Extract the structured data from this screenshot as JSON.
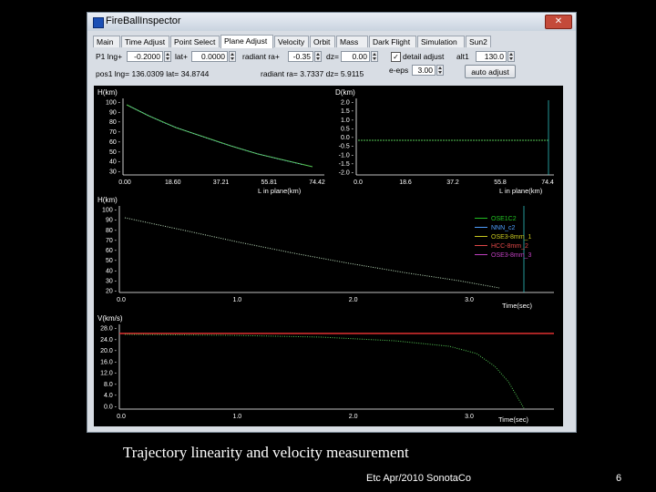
{
  "window": {
    "title": "FireBallInspector"
  },
  "tabs": [
    "Main",
    "Time Adjust",
    "Point Select",
    "Plane Adjust",
    "Velocity",
    "Orbit",
    "Mass",
    "Dark Flight",
    "Simulation",
    "Sun2"
  ],
  "active_tab_index": 3,
  "controls": {
    "p1_lng_label": "P1 lng+",
    "p1_lng_value": "-0.2000",
    "lat_label": "lat+",
    "lat_value": "0.0000",
    "radiant_ra_label": "radiant ra+",
    "radiant_ra_value": "-0.35",
    "dz_label": "dz=",
    "dz_value": "0.00",
    "detail_adjust_label": "detail adjust",
    "detail_adjust_checked": true,
    "alt1_label": "alt1",
    "alt1_value": "130.0",
    "eps_label": "e-eps",
    "eps_value": "3.00",
    "auto_adjust_label": "auto adjust",
    "status_text": "pos1 lng= 136.0309  lat= 34.8744",
    "status_text2": "radiant ra= 3.7337  dz= 5.9115"
  },
  "plot1": {
    "ylabel": "H(km)",
    "xlabel": "L in plane(km)",
    "yticks": [
      "100",
      "90",
      "80",
      "70",
      "60",
      "50",
      "40",
      "30"
    ],
    "xticks": [
      "0.00",
      "18.60",
      "37.21",
      "55.81",
      "74.42"
    ]
  },
  "plot2": {
    "ylabel": "D(km)",
    "xlabel": "L in plane(km)",
    "yticks": [
      "2.0",
      "1.5",
      "1.0",
      "0.5",
      "0.0",
      "-0.5",
      "-1.0",
      "-1.5",
      "-2.0"
    ],
    "xticks": [
      "0.0",
      "18.6",
      "37.2",
      "55.8",
      "74.4"
    ]
  },
  "plot3": {
    "ylabel": "H(km)",
    "xlabel": "Time(sec)",
    "yticks": [
      "100",
      "90",
      "80",
      "70",
      "60",
      "50",
      "40",
      "30",
      "20"
    ],
    "xticks": [
      "0.0",
      "1.0",
      "2.0",
      "3.0"
    ],
    "legend": [
      {
        "name": "OSE1C2",
        "color": "#22c022"
      },
      {
        "name": "NNN_c2",
        "color": "#4fa0ff"
      },
      {
        "name": "OSE3-8mm_1",
        "color": "#c8c820"
      },
      {
        "name": "HCC-8mm_2",
        "color": "#e04848"
      },
      {
        "name": "OSE3-8mm_3",
        "color": "#c040c0"
      }
    ]
  },
  "plot4": {
    "ylabel": "V(km/s)",
    "xlabel": "Time(sec)",
    "yticks": [
      "28.0",
      "24.0",
      "20.0",
      "16.0",
      "12.0",
      "8.0",
      "4.0",
      "0.0"
    ],
    "xticks": [
      "0.0",
      "1.0",
      "2.0",
      "3.0"
    ]
  },
  "caption": "Trajectory linearity and velocity measurement",
  "footer": "Etc  Apr/2010 SonotaCo",
  "page_number": "6"
}
